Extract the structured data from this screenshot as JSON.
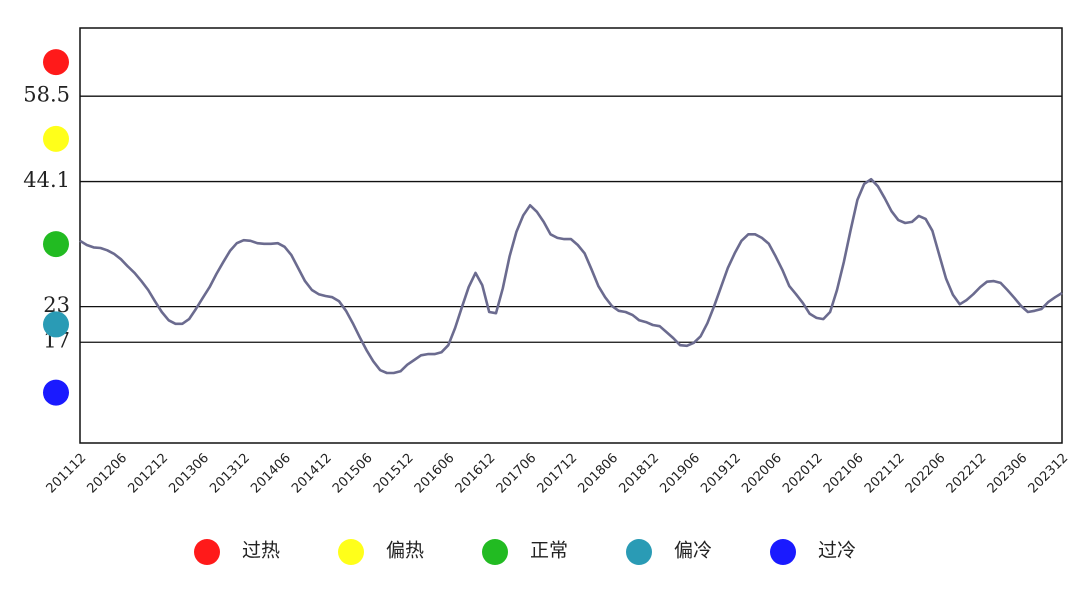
{
  "chart_data": {
    "type": "line",
    "categories": [
      "201112",
      null,
      null,
      null,
      null,
      null,
      "201206",
      null,
      null,
      null,
      null,
      null,
      "201212",
      null,
      null,
      null,
      null,
      null,
      "201306",
      null,
      null,
      null,
      null,
      null,
      "201312",
      null,
      null,
      null,
      null,
      null,
      "201406",
      null,
      null,
      null,
      null,
      null,
      "201412",
      null,
      null,
      null,
      null,
      null,
      "201506",
      null,
      null,
      null,
      null,
      null,
      "201512",
      null,
      null,
      null,
      null,
      null,
      "201606",
      null,
      null,
      null,
      null,
      null,
      "201612",
      null,
      null,
      null,
      null,
      null,
      "201706",
      null,
      null,
      null,
      null,
      null,
      "201712",
      null,
      null,
      null,
      null,
      null,
      "201806",
      null,
      null,
      null,
      null,
      null,
      "201812",
      null,
      null,
      null,
      null,
      null,
      "201906",
      null,
      null,
      null,
      null,
      null,
      "201912",
      null,
      null,
      null,
      null,
      null,
      "202006",
      null,
      null,
      null,
      null,
      null,
      "202012",
      null,
      null,
      null,
      null,
      null,
      "202106",
      null,
      null,
      null,
      null,
      null,
      "202112",
      null,
      null,
      null,
      null,
      null,
      "202206",
      null,
      null,
      null,
      null,
      null,
      "202212",
      null,
      null,
      null,
      null,
      null,
      "202306",
      null,
      null,
      null,
      null,
      null,
      "202312"
    ],
    "values": [
      34.1,
      33.4,
      33.0,
      32.9,
      32.5,
      31.9,
      31.0,
      29.8,
      28.7,
      27.3,
      25.8,
      23.9,
      22.1,
      20.7,
      20.1,
      20.1,
      20.9,
      22.6,
      24.5,
      26.3,
      28.5,
      30.5,
      32.4,
      33.7,
      34.2,
      34.1,
      33.7,
      33.6,
      33.6,
      33.7,
      33.1,
      31.7,
      29.5,
      27.3,
      25.8,
      25.1,
      24.8,
      24.6,
      23.9,
      22.3,
      20.2,
      17.9,
      15.7,
      13.8,
      12.3,
      11.8,
      11.8,
      12.1,
      13.2,
      14.0,
      14.8,
      15.0,
      15.0,
      15.3,
      16.5,
      19.4,
      22.9,
      26.3,
      28.7,
      26.6,
      22.1,
      21.9,
      26.1,
      31.5,
      35.6,
      38.4,
      40.1,
      39.0,
      37.3,
      35.2,
      34.6,
      34.4,
      34.4,
      33.4,
      32.0,
      29.3,
      26.5,
      24.6,
      23.1,
      22.3,
      22.1,
      21.6,
      20.7,
      20.4,
      19.9,
      19.7,
      18.7,
      17.7,
      16.5,
      16.4,
      16.9,
      18.0,
      20.2,
      23.1,
      26.3,
      29.5,
      32.0,
      34.1,
      35.2,
      35.2,
      34.6,
      33.6,
      31.5,
      29.2,
      26.5,
      25.1,
      23.6,
      21.8,
      21.1,
      20.9,
      22.1,
      25.8,
      30.5,
      35.9,
      41.0,
      43.7,
      44.5,
      43.3,
      41.3,
      39.1,
      37.6,
      37.1,
      37.3,
      38.3,
      37.8,
      35.8,
      31.7,
      27.7,
      25.0,
      23.4,
      24.1,
      25.1,
      26.3,
      27.2,
      27.3,
      27.0,
      25.8,
      24.5,
      23.1,
      22.1,
      22.3,
      22.6,
      23.8,
      24.6,
      25.3
    ],
    "color": "#6b6b8f",
    "ylim": [
      0,
      70
    ],
    "yticks": [
      17,
      23,
      44.1,
      58.5
    ],
    "grid": true,
    "legend": [
      {
        "name": "过热",
        "color": "#ff1a1a"
      },
      {
        "name": "偏热",
        "color": "#ffff1a"
      },
      {
        "name": "正常",
        "color": "#22bb22"
      },
      {
        "name": "偏冷",
        "color": "#2a9bb5"
      },
      {
        "name": "过冷",
        "color": "#1a1aff"
      }
    ]
  }
}
